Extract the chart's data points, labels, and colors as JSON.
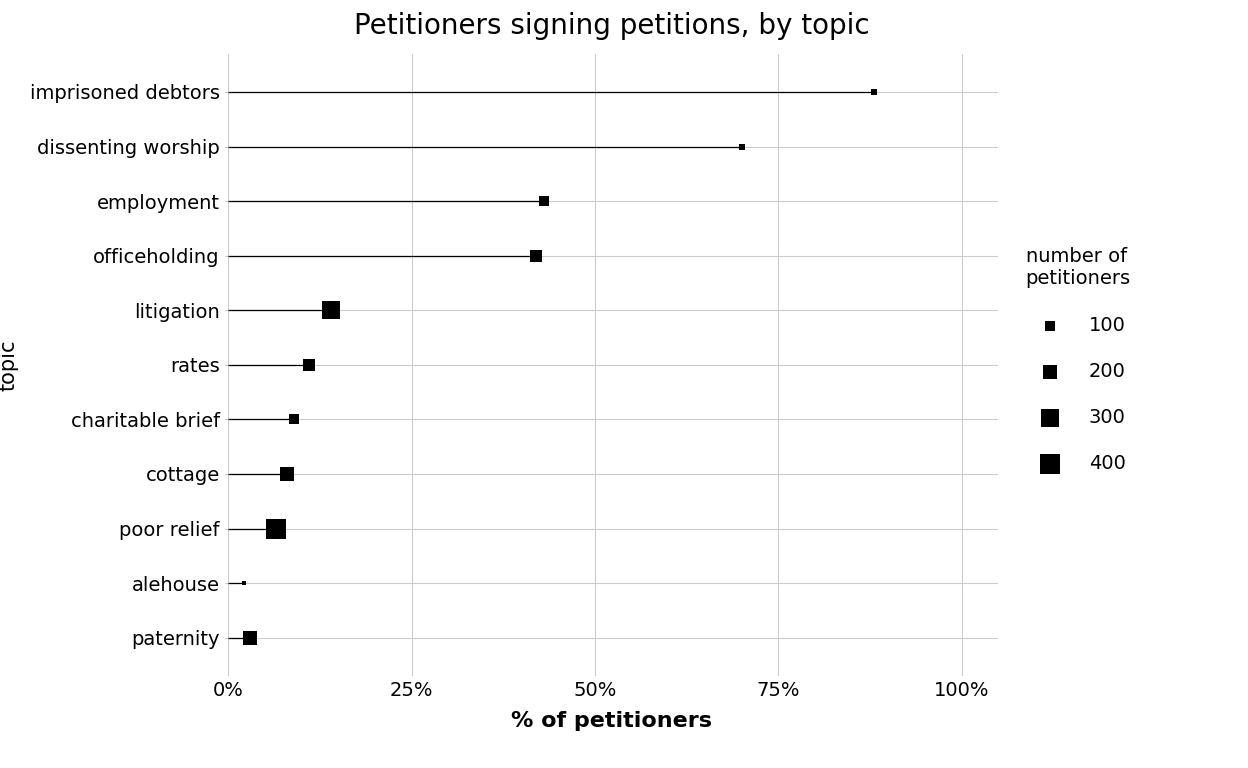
{
  "title": "Petitioners signing petitions, by topic",
  "xlabel": "% of petitioners",
  "ylabel": "topic",
  "categories": [
    "imprisoned debtors",
    "dissenting worship",
    "employment",
    "officeholding",
    "litigation",
    "rates",
    "charitable brief",
    "cottage",
    "poor relief",
    "alehouse",
    "paternity"
  ],
  "pct_values": [
    0.88,
    0.7,
    0.43,
    0.42,
    0.14,
    0.11,
    0.09,
    0.08,
    0.065,
    0.022,
    0.03
  ],
  "actual_n": [
    40,
    40,
    80,
    120,
    300,
    150,
    80,
    180,
    380,
    20,
    160
  ],
  "background_color": "#ffffff",
  "line_color": "#000000",
  "marker_color": "#000000",
  "grid_color": "#cccccc",
  "legend_title": "number of\npetitioners",
  "legend_sizes": [
    100,
    200,
    300,
    400
  ],
  "base_marker_size": 55,
  "title_fontsize": 20,
  "axis_label_fontsize": 15,
  "tick_fontsize": 14,
  "category_fontsize": 14
}
